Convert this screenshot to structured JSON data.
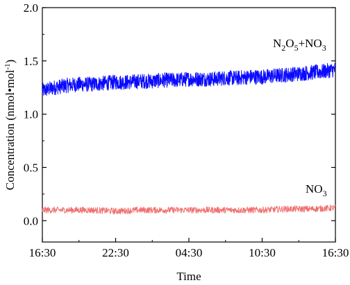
{
  "chart_data": {
    "type": "line",
    "title": "",
    "xlabel": "Time",
    "ylabel": "Concentration (nmol•mol",
    "ylabel_sup": "-1",
    "ylabel_close": ")",
    "ylim": [
      -0.2,
      2.0
    ],
    "yticks": [
      "0.0",
      "0.5",
      "1.0",
      "1.5",
      "2.0"
    ],
    "yticks_values": [
      0.0,
      0.5,
      1.0,
      1.5,
      2.0
    ],
    "xticks": [
      "16:30",
      "22:30",
      "04:30",
      "10:30",
      "16:30"
    ],
    "x_span_hours": [
      0,
      24
    ],
    "grid": false,
    "series": [
      {
        "name_parts": {
          "n": "N",
          "s1": "2",
          "o": "O",
          "s2": "5",
          "plus": "+NO",
          "s3": "3"
        },
        "color": "#0a0aff",
        "x_hours": [
          0,
          1,
          2,
          3,
          4,
          5,
          6,
          7,
          8,
          9,
          10,
          11,
          12,
          13,
          14,
          15,
          16,
          17,
          18,
          19,
          20,
          21,
          22,
          23,
          24
        ],
        "values": [
          1.22,
          1.25,
          1.27,
          1.28,
          1.28,
          1.29,
          1.3,
          1.3,
          1.31,
          1.31,
          1.32,
          1.32,
          1.33,
          1.33,
          1.33,
          1.34,
          1.34,
          1.35,
          1.35,
          1.36,
          1.37,
          1.38,
          1.39,
          1.4,
          1.42
        ],
        "noise_amplitude": 0.07
      },
      {
        "name_parts": {
          "n": "NO",
          "s1": "3"
        },
        "color": "#f07070",
        "x_hours": [
          0,
          2,
          4,
          6,
          8,
          10,
          12,
          14,
          16,
          18,
          20,
          22,
          24
        ],
        "values": [
          0.1,
          0.1,
          0.1,
          0.09,
          0.1,
          0.1,
          0.1,
          0.1,
          0.1,
          0.1,
          0.11,
          0.11,
          0.12
        ],
        "noise_amplitude": 0.03
      }
    ]
  }
}
